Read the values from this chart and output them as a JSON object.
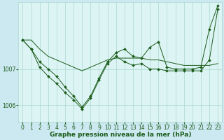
{
  "background_color": "#cce8f0",
  "plot_bg_color": "#ddf4f4",
  "grid_color": "#a8d8cc",
  "line_color": "#1a5c1a",
  "marker_color": "#1a5c1a",
  "xlabel": "Graphe pression niveau de la mer (hPa)",
  "xlabel_fontsize": 6.5,
  "tick_fontsize": 5.5,
  "ylim": [
    1005.55,
    1008.85
  ],
  "xlim": [
    -0.5,
    23.5
  ],
  "yticks": [
    1006,
    1007
  ],
  "xticks": [
    0,
    1,
    2,
    3,
    4,
    5,
    6,
    7,
    8,
    9,
    10,
    11,
    12,
    13,
    14,
    15,
    16,
    17,
    18,
    19,
    20,
    21,
    22,
    23
  ],
  "series1_x": [
    0,
    1,
    2,
    3,
    4,
    5,
    6,
    7,
    8,
    9,
    10,
    11,
    12,
    13,
    14,
    15,
    16,
    17,
    18,
    19,
    20,
    21,
    22,
    23
  ],
  "series1_y": [
    1007.8,
    1007.8,
    1007.55,
    1007.35,
    1007.25,
    1007.15,
    1007.05,
    1006.95,
    1007.05,
    1007.15,
    1007.25,
    1007.3,
    1007.3,
    1007.3,
    1007.3,
    1007.25,
    1007.25,
    1007.2,
    1007.15,
    1007.1,
    1007.1,
    1007.1,
    1007.1,
    1007.15
  ],
  "series2_x": [
    0,
    1,
    2,
    3,
    4,
    5,
    6,
    7,
    8,
    9,
    10,
    11,
    12,
    13,
    14,
    15,
    16,
    17,
    18,
    19,
    20,
    21,
    22,
    23
  ],
  "series2_y": [
    1007.8,
    1007.55,
    1007.05,
    1006.8,
    1006.6,
    1006.35,
    1006.15,
    1005.9,
    1006.2,
    1006.7,
    1007.15,
    1007.35,
    1007.2,
    1007.1,
    1007.15,
    1007.0,
    1007.0,
    1006.95,
    1006.95,
    1006.95,
    1006.95,
    1006.95,
    1007.25,
    1008.65
  ],
  "series3_x": [
    0,
    1,
    2,
    3,
    4,
    5,
    6,
    7,
    8,
    9,
    10,
    11,
    12,
    13,
    14,
    15,
    16,
    17,
    18,
    19,
    20,
    21,
    22,
    23
  ],
  "series3_y": [
    1007.8,
    1007.55,
    1007.2,
    1007.0,
    1006.8,
    1006.5,
    1006.25,
    1005.95,
    1006.25,
    1006.75,
    1007.2,
    1007.45,
    1007.55,
    1007.35,
    1007.3,
    1007.6,
    1007.75,
    1007.05,
    1007.0,
    1007.0,
    1007.0,
    1007.05,
    1008.1,
    1008.75
  ]
}
